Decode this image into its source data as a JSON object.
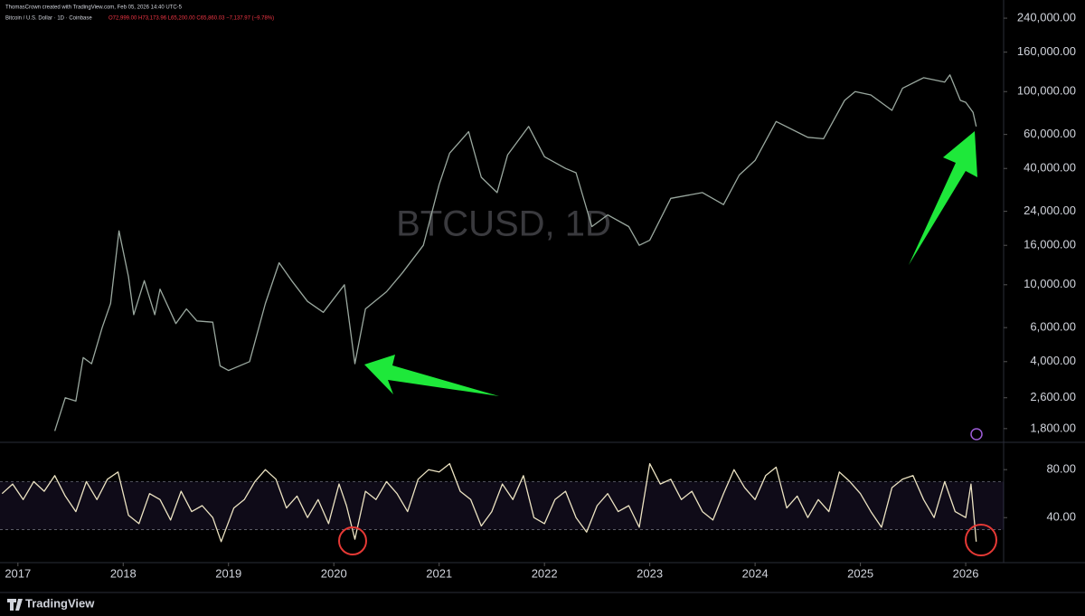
{
  "header": {
    "author_line": "ThomasCrown created with TradingView.com, Feb 05, 2026 14:40 UTC-5",
    "symbol_line": "Bitcoin / U.S. Dollar · 1D · Coinbase",
    "ohlc_line": "O72,999.00 H73,173.96 L65,200.00 C65,860.03 −7,137.97 (−9.78%)"
  },
  "footer": {
    "brand": "TradingView"
  },
  "chart_data": [
    {
      "type": "line",
      "watermark": "BTCUSD, 1D",
      "log_scale": true,
      "grid": false,
      "xlim": [
        2016.83,
        2026.36
      ],
      "ylim": [
        1545,
        298000
      ],
      "yticks": [
        {
          "value": 240000,
          "label": "240,000.00"
        },
        {
          "value": 160000,
          "label": "160,000.00"
        },
        {
          "value": 100000,
          "label": "100,000.00"
        },
        {
          "value": 60000,
          "label": "60,000.00"
        },
        {
          "value": 40000,
          "label": "40,000.00"
        },
        {
          "value": 24000,
          "label": "24,000.00"
        },
        {
          "value": 16000,
          "label": "16,000.00"
        },
        {
          "value": 10000,
          "label": "10,000.00"
        },
        {
          "value": 6000,
          "label": "6,000.00"
        },
        {
          "value": 4000,
          "label": "4,000.00"
        },
        {
          "value": 2600,
          "label": "2,600.00"
        },
        {
          "value": 1800,
          "label": "1,800.00"
        }
      ],
      "x": [
        2017.35,
        2017.45,
        2017.55,
        2017.62,
        2017.7,
        2017.8,
        2017.88,
        2017.96,
        2018.05,
        2018.1,
        2018.2,
        2018.3,
        2018.35,
        2018.5,
        2018.6,
        2018.7,
        2018.85,
        2018.92,
        2019.0,
        2019.2,
        2019.35,
        2019.48,
        2019.6,
        2019.75,
        2019.9,
        2020.1,
        2020.2,
        2020.3,
        2020.5,
        2020.65,
        2020.85,
        2021.0,
        2021.1,
        2021.28,
        2021.4,
        2021.55,
        2021.65,
        2021.85,
        2022.0,
        2022.2,
        2022.3,
        2022.45,
        2022.6,
        2022.8,
        2022.9,
        2023.0,
        2023.2,
        2023.5,
        2023.7,
        2023.85,
        2024.0,
        2024.2,
        2024.5,
        2024.65,
        2024.85,
        2024.95,
        2025.1,
        2025.3,
        2025.4,
        2025.6,
        2025.8,
        2025.85,
        2025.95,
        2026.0,
        2026.07,
        2026.1
      ],
      "series": [
        {
          "color": "#9aa89f",
          "values": [
            1750,
            2600,
            2500,
            4200,
            3900,
            6000,
            8000,
            19000,
            11000,
            7000,
            10500,
            7000,
            9500,
            6300,
            7500,
            6500,
            6400,
            3800,
            3600,
            4000,
            8000,
            13000,
            10500,
            8200,
            7200,
            10000,
            3900,
            7500,
            9200,
            11500,
            16000,
            33000,
            48000,
            62000,
            36000,
            30000,
            47000,
            66000,
            46000,
            40000,
            38000,
            20000,
            23000,
            20000,
            16000,
            17000,
            28000,
            30000,
            26000,
            37000,
            44000,
            70000,
            58000,
            57000,
            90000,
            100000,
            96000,
            80000,
            104000,
            118000,
            112000,
            122000,
            90000,
            88000,
            78000,
            66000
          ]
        }
      ]
    },
    {
      "type": "line",
      "grid": false,
      "band": [
        30,
        70
      ],
      "xlim": [
        2016.83,
        2026.36
      ],
      "ylim": [
        4,
        102
      ],
      "xticks": [
        2017,
        2018,
        2019,
        2020,
        2021,
        2022,
        2023,
        2024,
        2025,
        2026
      ],
      "yticks": [
        {
          "value": 80,
          "label": "80.00"
        },
        {
          "value": 40,
          "label": "40.00"
        }
      ],
      "x": [
        2016.85,
        2016.95,
        2017.05,
        2017.15,
        2017.25,
        2017.35,
        2017.45,
        2017.55,
        2017.65,
        2017.75,
        2017.85,
        2017.95,
        2018.05,
        2018.15,
        2018.25,
        2018.35,
        2018.45,
        2018.55,
        2018.65,
        2018.75,
        2018.85,
        2018.93,
        2019.05,
        2019.15,
        2019.25,
        2019.35,
        2019.45,
        2019.55,
        2019.65,
        2019.75,
        2019.85,
        2019.95,
        2020.05,
        2020.12,
        2020.2,
        2020.3,
        2020.4,
        2020.5,
        2020.6,
        2020.7,
        2020.8,
        2020.9,
        2021.0,
        2021.1,
        2021.2,
        2021.3,
        2021.4,
        2021.5,
        2021.6,
        2021.7,
        2021.8,
        2021.9,
        2022.0,
        2022.1,
        2022.2,
        2022.3,
        2022.4,
        2022.5,
        2022.6,
        2022.7,
        2022.8,
        2022.9,
        2023.0,
        2023.1,
        2023.2,
        2023.3,
        2023.4,
        2023.5,
        2023.6,
        2023.7,
        2023.8,
        2023.9,
        2024.0,
        2024.1,
        2024.2,
        2024.3,
        2024.4,
        2024.5,
        2024.6,
        2024.7,
        2024.8,
        2024.9,
        2025.0,
        2025.1,
        2025.2,
        2025.3,
        2025.4,
        2025.5,
        2025.6,
        2025.7,
        2025.8,
        2025.9,
        2026.0,
        2026.05,
        2026.1
      ],
      "series": [
        {
          "color": "#ece3c2",
          "values": [
            60,
            68,
            55,
            70,
            62,
            75,
            58,
            45,
            70,
            55,
            72,
            78,
            42,
            35,
            60,
            55,
            38,
            62,
            45,
            50,
            40,
            20,
            48,
            55,
            70,
            80,
            72,
            48,
            58,
            40,
            55,
            35,
            68,
            50,
            22,
            62,
            55,
            70,
            60,
            45,
            72,
            80,
            78,
            85,
            62,
            55,
            33,
            45,
            68,
            55,
            75,
            40,
            35,
            55,
            62,
            40,
            28,
            50,
            60,
            45,
            50,
            32,
            85,
            68,
            72,
            55,
            62,
            45,
            38,
            60,
            80,
            65,
            55,
            75,
            82,
            48,
            58,
            40,
            55,
            45,
            78,
            70,
            60,
            45,
            32,
            65,
            72,
            75,
            55,
            40,
            70,
            45,
            40,
            68,
            20
          ]
        }
      ]
    }
  ]
}
